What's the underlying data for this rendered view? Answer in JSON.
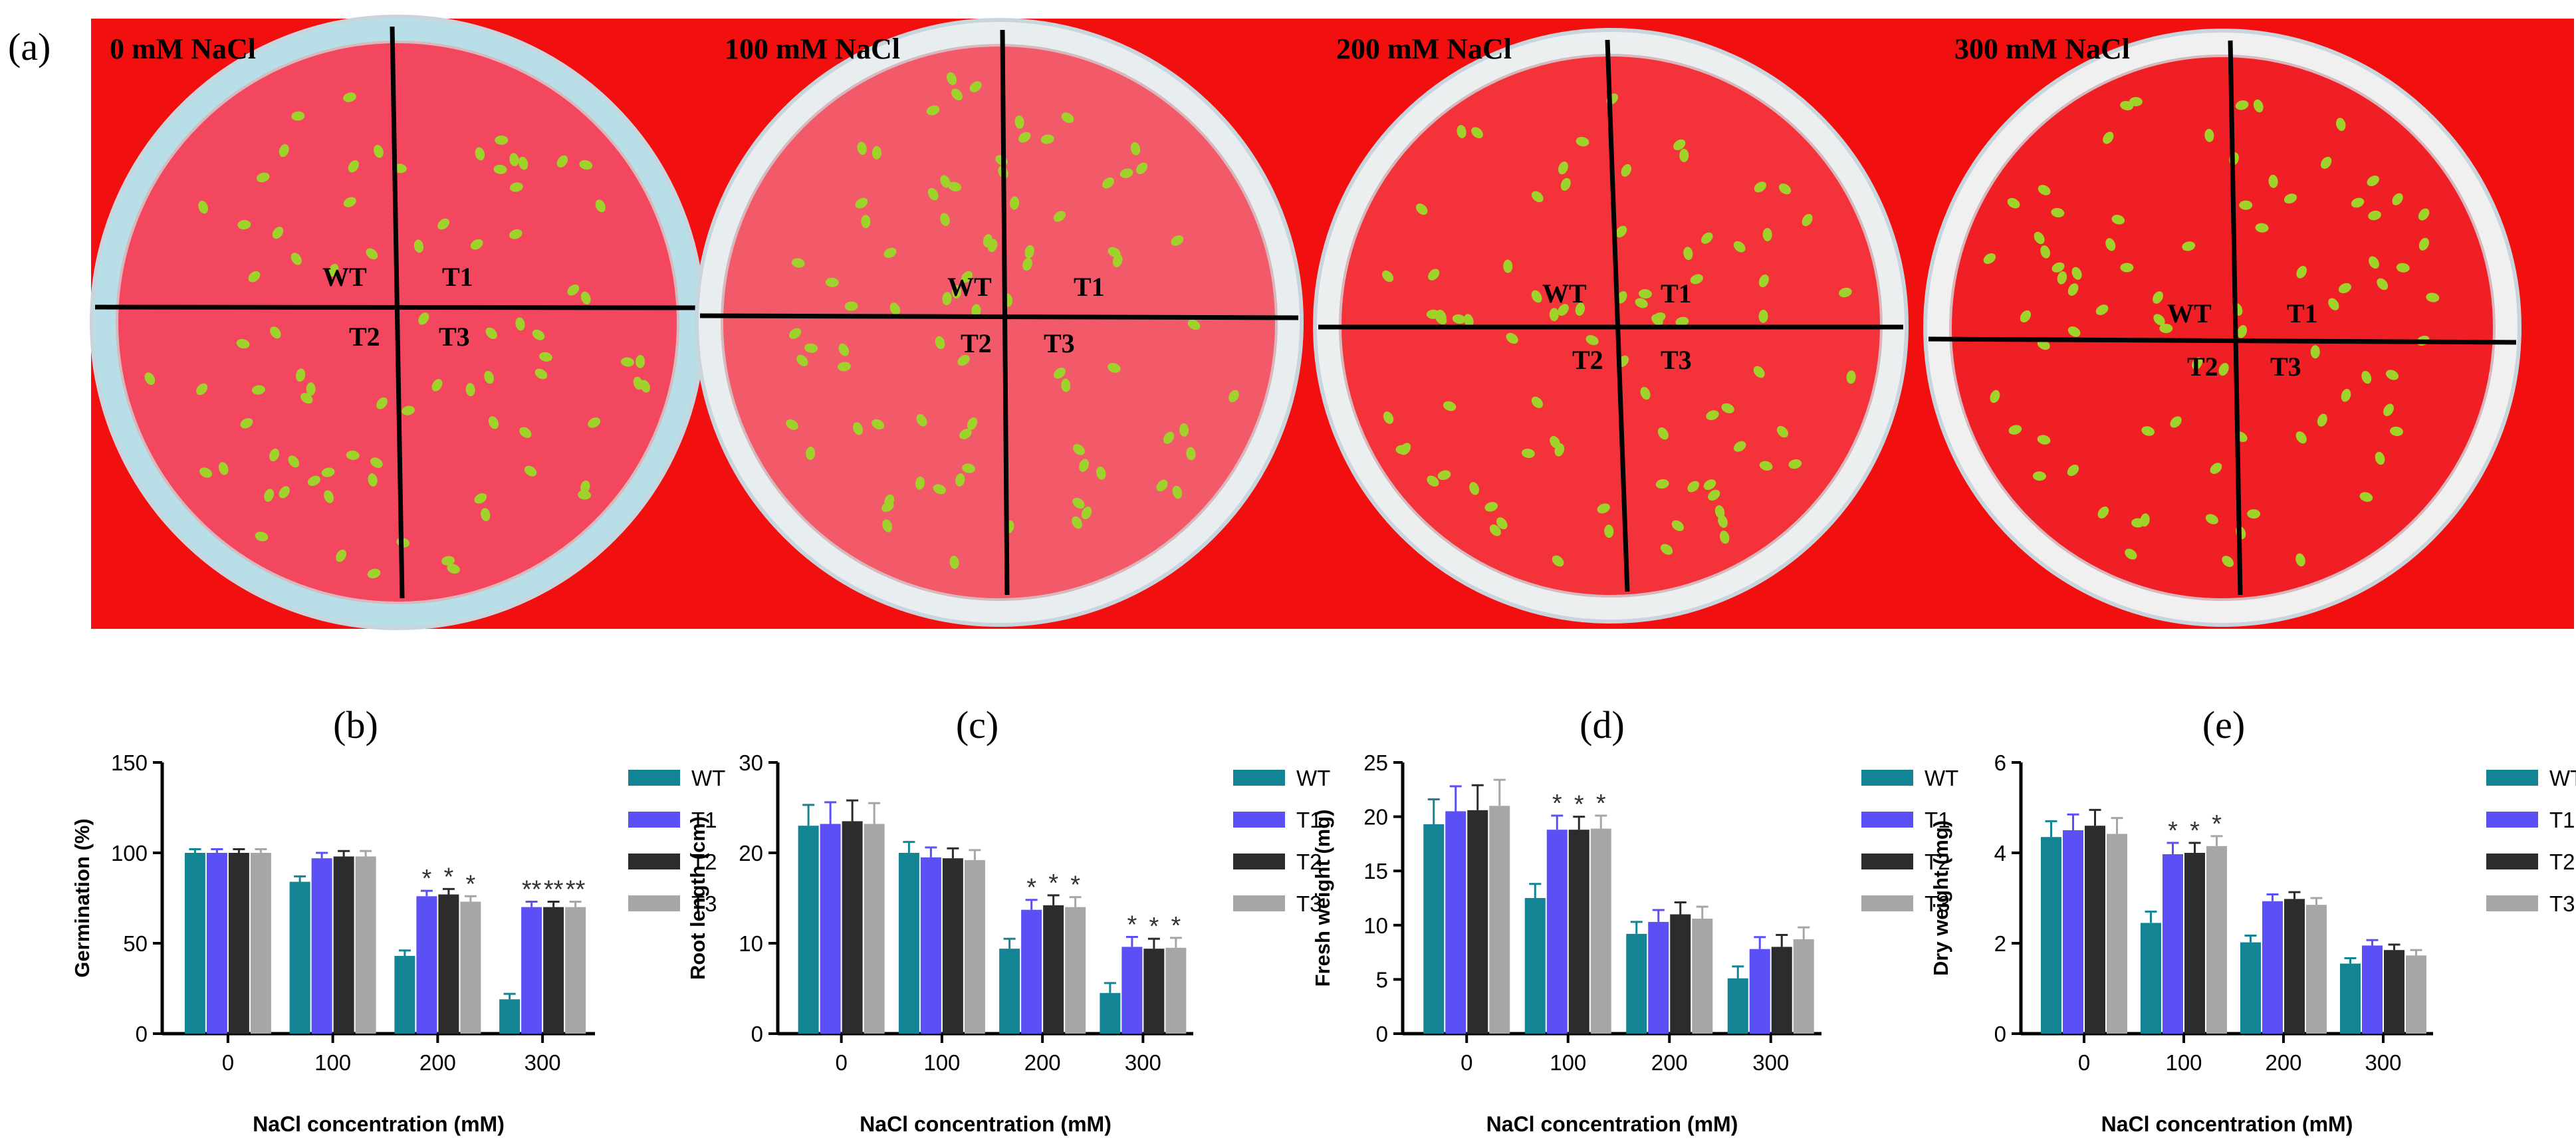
{
  "figure": {
    "panel_a_label": "(a)",
    "plates": [
      {
        "title": "0 mM NaCl",
        "quadrants": [
          "WT",
          "T1",
          "T2",
          "T3"
        ]
      },
      {
        "title": "100 mM NaCl",
        "quadrants": [
          "WT",
          "T1",
          "T2",
          "T3"
        ]
      },
      {
        "title": "200 mM NaCl",
        "quadrants": [
          "WT",
          "T1",
          "T2",
          "T3"
        ]
      },
      {
        "title": "300 mM NaCl",
        "quadrants": [
          "WT",
          "T1",
          "T2",
          "T3"
        ]
      }
    ]
  },
  "colors": {
    "background_red": "#f20f0f",
    "WT": "#128494",
    "T1": "#5a50f5",
    "T2": "#2c2c2c",
    "T3": "#a6a6a6"
  },
  "chart_data": [
    {
      "type": "bar",
      "panel": "(b)",
      "ylabel": "Germination (%)",
      "xlabel": "NaCl concentration (mM)",
      "ylim": [
        0,
        150
      ],
      "yticks": [
        0,
        50,
        100,
        150
      ],
      "categories": [
        "0",
        "100",
        "200",
        "300"
      ],
      "series": [
        {
          "name": "WT",
          "values": [
            100,
            84,
            43,
            19
          ],
          "errors": [
            2,
            3,
            3,
            3
          ]
        },
        {
          "name": "T1",
          "values": [
            100,
            97,
            76,
            70
          ],
          "errors": [
            2,
            3,
            3,
            3
          ]
        },
        {
          "name": "T2",
          "values": [
            100,
            98,
            77,
            70
          ],
          "errors": [
            2,
            3,
            3,
            3
          ]
        },
        {
          "name": "T3",
          "values": [
            100,
            98,
            73,
            70
          ],
          "errors": [
            2,
            3,
            3,
            3
          ]
        }
      ],
      "significance": [
        {
          "category": "200",
          "series": "T1",
          "mark": "*"
        },
        {
          "category": "200",
          "series": "T2",
          "mark": "*"
        },
        {
          "category": "200",
          "series": "T3",
          "mark": "*"
        },
        {
          "category": "300",
          "series": "T1",
          "mark": "**"
        },
        {
          "category": "300",
          "series": "T2",
          "mark": "**"
        },
        {
          "category": "300",
          "series": "T3",
          "mark": "**"
        }
      ]
    },
    {
      "type": "bar",
      "panel": "(c)",
      "ylabel": "Root length (cm)",
      "xlabel": "NaCl concentration (mM)",
      "ylim": [
        0,
        30
      ],
      "yticks": [
        0,
        10,
        20,
        30
      ],
      "categories": [
        "0",
        "100",
        "200",
        "300"
      ],
      "series": [
        {
          "name": "WT",
          "values": [
            23,
            20,
            9.4,
            4.5
          ],
          "errors": [
            2.3,
            1.2,
            1.1,
            1.1
          ]
        },
        {
          "name": "T1",
          "values": [
            23.2,
            19.5,
            13.7,
            9.6
          ],
          "errors": [
            2.4,
            1.1,
            1.1,
            1.1
          ]
        },
        {
          "name": "T2",
          "values": [
            23.5,
            19.4,
            14.2,
            9.4
          ],
          "errors": [
            2.3,
            1.1,
            1.1,
            1.1
          ]
        },
        {
          "name": "T3",
          "values": [
            23.2,
            19.2,
            14,
            9.5
          ],
          "errors": [
            2.3,
            1.1,
            1.1,
            1.1
          ]
        }
      ],
      "significance": [
        {
          "category": "200",
          "series": "T1",
          "mark": "*"
        },
        {
          "category": "200",
          "series": "T2",
          "mark": "*"
        },
        {
          "category": "200",
          "series": "T3",
          "mark": "*"
        },
        {
          "category": "300",
          "series": "T1",
          "mark": "*"
        },
        {
          "category": "300",
          "series": "T2",
          "mark": "*"
        },
        {
          "category": "300",
          "series": "T3",
          "mark": "*"
        }
      ]
    },
    {
      "type": "bar",
      "panel": "(d)",
      "ylabel": "Fresh weight (mg)",
      "xlabel": "NaCl concentration (mM)",
      "ylim": [
        0,
        25
      ],
      "yticks": [
        0,
        5,
        10,
        15,
        20,
        25
      ],
      "categories": [
        "0",
        "100",
        "200",
        "300"
      ],
      "series": [
        {
          "name": "WT",
          "values": [
            19.3,
            12.5,
            9.2,
            5.1
          ],
          "errors": [
            2.3,
            1.3,
            1.1,
            1.1
          ]
        },
        {
          "name": "T1",
          "values": [
            20.5,
            18.8,
            10.3,
            7.8
          ],
          "errors": [
            2.3,
            1.3,
            1.1,
            1.1
          ]
        },
        {
          "name": "T2",
          "values": [
            20.6,
            18.8,
            11,
            8
          ],
          "errors": [
            2.3,
            1.2,
            1.1,
            1.1
          ]
        },
        {
          "name": "T3",
          "values": [
            21,
            18.9,
            10.6,
            8.7
          ],
          "errors": [
            2.4,
            1.2,
            1.1,
            1.1
          ]
        }
      ],
      "significance": [
        {
          "category": "100",
          "series": "T1",
          "mark": "*"
        },
        {
          "category": "100",
          "series": "T2",
          "mark": "*"
        },
        {
          "category": "100",
          "series": "T3",
          "mark": "*"
        }
      ]
    },
    {
      "type": "bar",
      "panel": "(e)",
      "ylabel": "Dry weight (mg)",
      "xlabel": "NaCl concentration (mM)",
      "ylim": [
        0,
        6
      ],
      "yticks": [
        0,
        2,
        4,
        6
      ],
      "categories": [
        "0",
        "100",
        "200",
        "300"
      ],
      "series": [
        {
          "name": "WT",
          "values": [
            4.35,
            2.45,
            2.02,
            1.55
          ],
          "errors": [
            0.35,
            0.25,
            0.15,
            0.12
          ]
        },
        {
          "name": "T1",
          "values": [
            4.5,
            3.97,
            2.93,
            1.95
          ],
          "errors": [
            0.35,
            0.25,
            0.15,
            0.12
          ]
        },
        {
          "name": "T2",
          "values": [
            4.6,
            4.0,
            2.98,
            1.85
          ],
          "errors": [
            0.35,
            0.22,
            0.15,
            0.12
          ]
        },
        {
          "name": "T3",
          "values": [
            4.42,
            4.15,
            2.85,
            1.73
          ],
          "errors": [
            0.35,
            0.22,
            0.15,
            0.12
          ]
        }
      ],
      "significance": [
        {
          "category": "100",
          "series": "T1",
          "mark": "*"
        },
        {
          "category": "100",
          "series": "T2",
          "mark": "*"
        },
        {
          "category": "100",
          "series": "T3",
          "mark": "*"
        }
      ]
    }
  ]
}
